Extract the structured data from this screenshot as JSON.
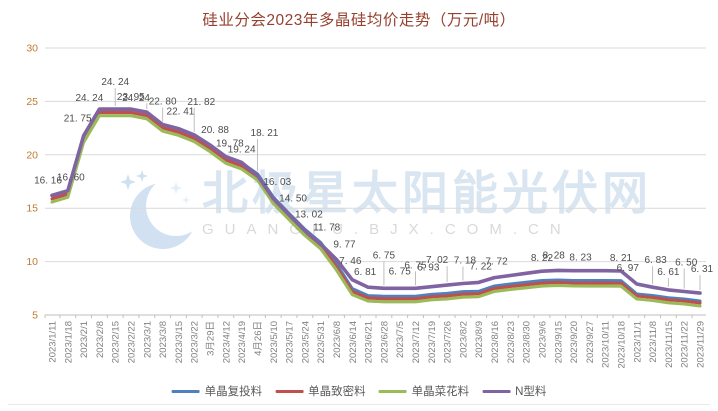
{
  "title": "硅业分会2023年多晶硅均价走势（万元/吨）",
  "watermark": {
    "cn": "北极星太阳能光伏网",
    "en": "GUANGFU.BJX.COM.CN"
  },
  "style": {
    "title_color": "#96402F",
    "ytick_color": "#BF7B34",
    "xtick_color": "#808080",
    "grid_color": "#D9D9D9",
    "axis_color": "#BFBFBF",
    "label_color": "#4d4d4d",
    "legend_text_color": "#595959"
  },
  "chart_data": {
    "type": "line",
    "title": "硅业分会2023年多晶硅均价走势（万元/吨）",
    "xlabel": "",
    "ylabel": "",
    "ylim": [
      5,
      30
    ],
    "yticks": [
      5,
      10,
      15,
      20,
      25,
      30
    ],
    "grid": true,
    "legend_position": "bottom",
    "categories": [
      "2023/1/11",
      "2023/1/18",
      "2023/2/1",
      "2023/2/8",
      "2023/2/15",
      "2023/2/22",
      "2023/3/1",
      "2023/3/8",
      "2023/3/15",
      "2023/3/22",
      "3月29日",
      "2023/4/12",
      "2023/4/19",
      "4月26日",
      "2023/5/10",
      "2023/5/17",
      "2023/5/24",
      "2023/5/31",
      "2023/6/8",
      "2023/6/14",
      "2023/6/21",
      "2023/6/28",
      "2023/7/5",
      "2023/7/12",
      "2023/7/19",
      "2023/7/26",
      "2023/8/2",
      "2023/8/9",
      "2023/8/16",
      "2023/8/23",
      "2023/8/30",
      "2023/9/6",
      "2023/9/15",
      "2023/9/20",
      "2023/9/27",
      "2023/10/11",
      "2023/10/18",
      "2023/11/1",
      "2023/11/8",
      "2023/11/15",
      "2023/11/22",
      "2023/11/29"
    ],
    "series": [
      {
        "name": "单晶复投料",
        "color": "#4F81BD",
        "values": [
          16.16,
          16.6,
          21.75,
          24.24,
          24.24,
          24.24,
          23.95,
          22.8,
          22.41,
          21.82,
          20.88,
          19.78,
          19.24,
          18.21,
          16.03,
          14.5,
          13.02,
          11.78,
          9.77,
          7.46,
          6.81,
          6.75,
          6.75,
          6.75,
          6.93,
          7.02,
          7.18,
          7.22,
          7.72,
          7.9,
          8.06,
          8.22,
          8.28,
          8.23,
          8.22,
          8.22,
          8.21,
          6.97,
          6.83,
          6.61,
          6.5,
          6.31
        ]
      },
      {
        "name": "单晶致密料",
        "color": "#C0504D",
        "values": [
          15.88,
          16.32,
          21.47,
          23.96,
          23.96,
          23.96,
          23.67,
          22.52,
          22.13,
          21.54,
          20.6,
          19.5,
          18.96,
          17.93,
          15.75,
          14.22,
          12.74,
          11.5,
          9.5,
          7.2,
          6.58,
          6.52,
          6.52,
          6.52,
          6.7,
          6.79,
          6.95,
          6.99,
          7.49,
          7.67,
          7.83,
          7.99,
          8.05,
          8.0,
          7.99,
          7.99,
          7.98,
          6.78,
          6.64,
          6.42,
          6.31,
          6.12
        ]
      },
      {
        "name": "单晶菜花料",
        "color": "#9BBB59",
        "values": [
          15.58,
          16.02,
          21.17,
          23.66,
          23.66,
          23.66,
          23.37,
          22.22,
          21.83,
          21.24,
          20.3,
          19.2,
          18.66,
          17.63,
          15.45,
          13.92,
          12.44,
          11.2,
          9.2,
          6.9,
          6.3,
          6.24,
          6.24,
          6.24,
          6.42,
          6.51,
          6.67,
          6.71,
          7.21,
          7.39,
          7.55,
          7.71,
          7.77,
          7.72,
          7.71,
          7.71,
          7.7,
          6.5,
          6.36,
          6.14,
          6.03,
          5.84
        ]
      },
      {
        "name": "N型料",
        "color": "#8064A2",
        "values": [
          16.2,
          16.64,
          21.79,
          24.28,
          24.28,
          24.28,
          23.99,
          22.84,
          22.45,
          21.86,
          20.92,
          19.82,
          19.28,
          18.05,
          15.9,
          14.38,
          12.9,
          11.65,
          10.2,
          8.3,
          7.6,
          7.5,
          7.5,
          7.5,
          7.65,
          7.8,
          7.95,
          8.05,
          8.5,
          8.7,
          8.9,
          9.1,
          9.18,
          9.15,
          9.15,
          9.15,
          9.12,
          7.9,
          7.6,
          7.35,
          7.2,
          7.05
        ]
      }
    ],
    "point_labels": [
      "16. 16",
      "16. 60",
      "21. 75",
      "24. 24",
      "24. 24",
      "24. 24",
      "23. 95",
      "22. 80",
      "22. 41",
      "21. 82",
      "20. 88",
      "19. 78",
      "19. 24",
      "18. 21",
      "16. 03",
      "14. 50",
      "13. 02",
      "11. 78",
      "9. 77",
      "7. 46",
      "6. 81",
      "6. 75",
      "6. 75",
      "6. 75",
      "6. 93",
      "7. 02",
      "7. 18",
      "7. 22",
      "7. 72",
      null,
      null,
      "8. 22",
      "8. 28",
      "8. 23",
      null,
      null,
      "8. 21",
      "6. 97",
      "6. 83",
      "6. 61",
      "6. 50",
      "6. 31"
    ],
    "label_layout": {
      "0": [
        -4,
        -12,
        false
      ],
      "1": [
        3,
        -10,
        false
      ],
      "2": [
        -6,
        -14,
        false
      ],
      "3": [
        -10,
        -8,
        false
      ],
      "4": [
        0,
        -24,
        true
      ],
      "5": [
        5,
        -8,
        false
      ],
      "6": [
        -16,
        -12,
        true
      ],
      "7": [
        0,
        -20,
        true
      ],
      "8": [
        2,
        -14,
        false
      ],
      "9": [
        7,
        -30,
        true
      ],
      "10": [
        5,
        -12,
        false
      ],
      "11": [
        4,
        -10,
        false
      ],
      "12": [
        0,
        -10,
        false
      ],
      "13": [
        7,
        -38,
        true
      ],
      "14": [
        4,
        -12,
        false
      ],
      "15": [
        4,
        -12,
        false
      ],
      "16": [
        4,
        -12,
        false
      ],
      "17": [
        6,
        -12,
        false
      ],
      "18": [
        8,
        -12,
        false
      ],
      "19": [
        -2,
        -16,
        false
      ],
      "20": [
        -3,
        -12,
        false
      ],
      "21": [
        0,
        -30,
        true
      ],
      "22": [
        0,
        -14,
        false
      ],
      "23": [
        0,
        -20,
        true
      ],
      "24": [
        -3,
        -16,
        false
      ],
      "25": [
        -10,
        -22,
        true
      ],
      "26": [
        2,
        -20,
        true
      ],
      "27": [
        2,
        -13,
        false
      ],
      "28": [
        2,
        -13,
        false
      ],
      "31": [
        0,
        -10,
        false
      ],
      "32": [
        -4,
        -12,
        false
      ],
      "33": [
        7,
        -10,
        false
      ],
      "36": [
        0,
        -10,
        false
      ],
      "37": [
        -9,
        -13,
        false
      ],
      "38": [
        3,
        -24,
        true
      ],
      "39": [
        0,
        -15,
        true
      ],
      "40": [
        2,
        -26,
        true
      ],
      "41": [
        2,
        -21,
        true
      ]
    }
  }
}
